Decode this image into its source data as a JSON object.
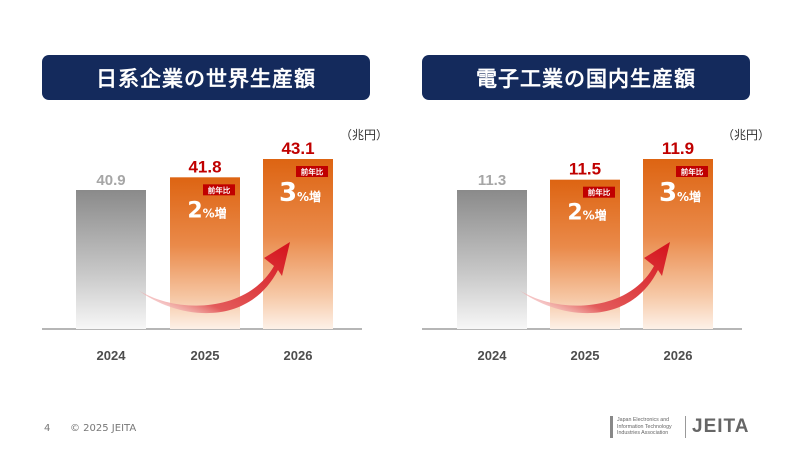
{
  "colors": {
    "title_bg": "#142a5c",
    "value_red": "#c00000",
    "bar_orange": "#e46c1e",
    "bar_gray": "#8c8c8c",
    "arrow_red": "#d4121b",
    "value_gray": "#a6a6a6"
  },
  "badge_label": "前年比",
  "chart_data": [
    {
      "type": "bar",
      "title": "日系企業の世界生産額",
      "unit": "（兆円）",
      "categories": [
        "2024",
        "2025",
        "2026"
      ],
      "values": [
        40.9,
        41.8,
        43.1
      ],
      "value_labels": [
        "40.9",
        "41.8",
        "43.1"
      ],
      "growth": [
        null,
        {
          "num": "2",
          "suffix": "%増"
        },
        {
          "num": "3",
          "suffix": "%増"
        }
      ]
    },
    {
      "type": "bar",
      "title": "電子工業の国内生産額",
      "unit": "（兆円）",
      "categories": [
        "2024",
        "2025",
        "2026"
      ],
      "values": [
        11.3,
        11.5,
        11.9
      ],
      "value_labels": [
        "11.3",
        "11.5",
        "11.9"
      ],
      "growth": [
        null,
        {
          "num": "2",
          "suffix": "%増"
        },
        {
          "num": "3",
          "suffix": "%増"
        }
      ]
    }
  ],
  "footer": {
    "page_number": "4",
    "copyright": "© 2025 JEITA"
  },
  "logo": {
    "tagline": "Japan Electronics and Information Technology Industries Association",
    "name": "JEITA"
  }
}
